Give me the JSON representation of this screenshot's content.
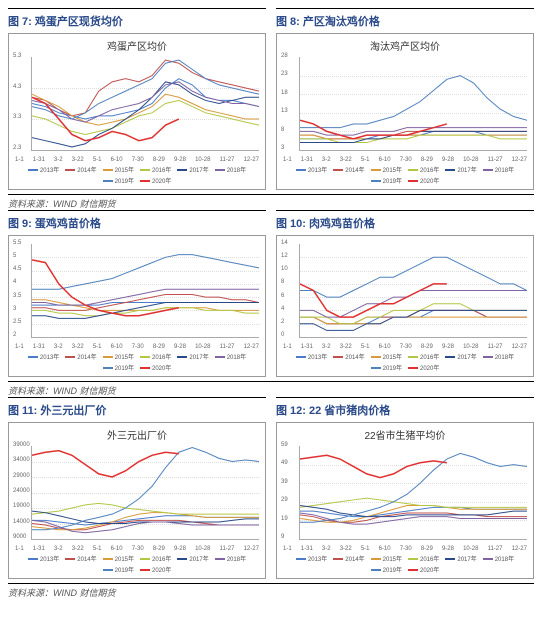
{
  "source_text": "资料来源：WIND 财信期货",
  "x_ticks": [
    "1-1",
    "1-31",
    "3-2",
    "3-22",
    "5-1",
    "6-10",
    "7-30",
    "8-29",
    "9-28",
    "10-28",
    "11-27",
    "12-27"
  ],
  "series_palette": {
    "2013年": "#4a7cc9",
    "2014年": "#c0504d",
    "2015年": "#d99a3a",
    "2016年": "#b5c644",
    "2017年": "#2a4a8a",
    "2018年": "#8064a2",
    "2019年": "#4f81bd",
    "2020年": "#e03030"
  },
  "figs": [
    {
      "label": "图 7: 鸡蛋产区现货均价",
      "inner_title": "鸡蛋产区均价",
      "ylim": [
        2.3,
        5.3
      ],
      "ytick_step": 1.0,
      "series": {
        "2013年": [
          3.8,
          3.7,
          3.5,
          3.4,
          3.3,
          3.4,
          3.4,
          3.5,
          3.6,
          3.8,
          4.3,
          4.6,
          4.4,
          4.0,
          3.9,
          3.9,
          3.8,
          3.7
        ],
        "2014年": [
          4.0,
          3.9,
          3.6,
          3.4,
          3.5,
          4.2,
          4.5,
          4.6,
          4.5,
          4.7,
          5.2,
          5.1,
          4.8,
          4.6,
          4.5,
          4.4,
          4.3,
          4.2
        ],
        "2015年": [
          4.1,
          3.9,
          3.7,
          3.4,
          3.2,
          3.1,
          3.2,
          3.3,
          3.5,
          3.7,
          4.1,
          4.0,
          3.8,
          3.6,
          3.5,
          3.4,
          3.3,
          3.3
        ],
        "2016年": [
          3.4,
          3.3,
          3.1,
          2.9,
          2.8,
          2.9,
          3.0,
          3.2,
          3.4,
          3.5,
          3.8,
          3.9,
          3.7,
          3.5,
          3.4,
          3.3,
          3.2,
          3.1
        ],
        "2017年": [
          2.7,
          2.6,
          2.5,
          2.4,
          2.5,
          2.8,
          3.0,
          3.3,
          3.6,
          4.0,
          4.5,
          4.4,
          4.1,
          3.9,
          3.8,
          3.9,
          4.0,
          4.0
        ],
        "2018年": [
          3.9,
          3.8,
          3.6,
          3.3,
          3.2,
          3.4,
          3.6,
          3.7,
          3.8,
          4.0,
          4.4,
          4.5,
          4.2,
          4.0,
          3.9,
          3.8,
          3.8,
          3.7
        ],
        "2019年": [
          3.7,
          3.6,
          3.4,
          3.3,
          3.5,
          3.8,
          4.0,
          4.2,
          4.4,
          4.6,
          5.1,
          5.2,
          4.9,
          4.6,
          4.4,
          4.3,
          4.2,
          4.1
        ],
        "2020年": [
          4.0,
          3.8,
          3.3,
          2.8,
          2.6,
          2.7,
          2.9,
          2.8,
          2.6,
          2.7,
          3.1,
          3.3
        ]
      }
    },
    {
      "label": "图 8: 产区淘汰鸡价格",
      "inner_title": "淘汰鸡产区均价",
      "ylim": [
        3,
        28
      ],
      "ytick_step": 5,
      "series": {
        "2013年": [
          6,
          6,
          6,
          6,
          6,
          6,
          7,
          7,
          7,
          7,
          8,
          8,
          8,
          8,
          7,
          7,
          7,
          7
        ],
        "2014年": [
          7,
          7,
          6,
          6,
          6,
          7,
          7,
          7,
          8,
          8,
          8,
          8,
          8,
          8,
          8,
          8,
          8,
          8
        ],
        "2015年": [
          7,
          7,
          6,
          6,
          6,
          6,
          6,
          7,
          7,
          7,
          7,
          7,
          7,
          7,
          7,
          7,
          7,
          7
        ],
        "2016年": [
          6,
          6,
          6,
          5,
          5,
          5,
          6,
          6,
          6,
          7,
          7,
          7,
          7,
          7,
          7,
          6,
          6,
          6
        ],
        "2017年": [
          5,
          5,
          5,
          5,
          5,
          6,
          6,
          7,
          7,
          8,
          8,
          8,
          8,
          8,
          8,
          8,
          8,
          8
        ],
        "2018年": [
          8,
          8,
          7,
          7,
          7,
          8,
          8,
          8,
          9,
          9,
          9,
          9,
          9,
          9,
          9,
          9,
          9,
          9
        ],
        "2019年": [
          9,
          9,
          9,
          9,
          10,
          10,
          11,
          12,
          14,
          16,
          19,
          22,
          23,
          21,
          17,
          14,
          12,
          11
        ],
        "2020年": [
          11,
          10,
          8,
          7,
          6,
          7,
          7,
          7,
          7,
          8,
          9,
          10
        ]
      }
    },
    {
      "label": "图 9: 蛋鸡鸡苗价格",
      "inner_title": "",
      "ylim": [
        2.0,
        5.5
      ],
      "ytick_step": 0.5,
      "series": {
        "2013年": [
          3.2,
          3.2,
          3.2,
          3.2,
          3.2,
          3.2,
          3.3,
          3.3,
          3.3,
          3.3,
          3.3,
          3.3,
          3.3,
          3.3,
          3.3,
          3.3,
          3.3,
          3.3
        ],
        "2014年": [
          3.1,
          3.1,
          3.0,
          3.0,
          3.0,
          3.1,
          3.2,
          3.3,
          3.4,
          3.5,
          3.6,
          3.6,
          3.6,
          3.5,
          3.5,
          3.4,
          3.4,
          3.3
        ],
        "2015年": [
          3.4,
          3.4,
          3.3,
          3.2,
          3.1,
          3.0,
          3.0,
          3.0,
          3.0,
          3.0,
          3.1,
          3.1,
          3.1,
          3.1,
          3.0,
          3.0,
          3.0,
          3.0
        ],
        "2016年": [
          3.0,
          3.0,
          2.9,
          2.9,
          2.8,
          2.8,
          2.9,
          2.9,
          3.0,
          3.0,
          3.1,
          3.1,
          3.1,
          3.0,
          3.0,
          3.0,
          2.9,
          2.9
        ],
        "2017年": [
          2.8,
          2.8,
          2.7,
          2.7,
          2.7,
          2.8,
          2.9,
          3.0,
          3.1,
          3.2,
          3.3,
          3.3,
          3.3,
          3.3,
          3.3,
          3.3,
          3.3,
          3.3
        ],
        "2018年": [
          3.3,
          3.3,
          3.2,
          3.2,
          3.2,
          3.3,
          3.4,
          3.5,
          3.6,
          3.7,
          3.8,
          3.8,
          3.8,
          3.8,
          3.8,
          3.8,
          3.8,
          3.8
        ],
        "2019年": [
          3.8,
          3.8,
          3.8,
          3.9,
          4.0,
          4.1,
          4.2,
          4.4,
          4.6,
          4.8,
          5.0,
          5.1,
          5.1,
          5.0,
          4.9,
          4.8,
          4.7,
          4.6
        ],
        "2020年": [
          4.9,
          4.8,
          4.0,
          3.5,
          3.2,
          3.0,
          2.9,
          2.8,
          2.8,
          2.9,
          3.0,
          3.1
        ]
      }
    },
    {
      "label": "图 10: 肉鸡鸡苗价格",
      "inner_title": "",
      "ylim": [
        0,
        14
      ],
      "ytick_step": 2,
      "series": {
        "2013年": [
          3,
          3,
          2,
          2,
          2,
          2,
          3,
          3,
          3,
          3,
          4,
          4,
          4,
          4,
          3,
          3,
          3,
          3
        ],
        "2014年": [
          3,
          3,
          2,
          2,
          2,
          3,
          3,
          3,
          3,
          4,
          4,
          4,
          4,
          4,
          3,
          3,
          3,
          3
        ],
        "2015年": [
          3,
          3,
          2,
          2,
          2,
          2,
          2,
          3,
          3,
          3,
          3,
          3,
          3,
          3,
          3,
          3,
          3,
          3
        ],
        "2016年": [
          3,
          3,
          3,
          2,
          2,
          3,
          3,
          4,
          4,
          4,
          5,
          5,
          5,
          4,
          4,
          4,
          4,
          4
        ],
        "2017年": [
          2,
          2,
          1,
          1,
          1,
          2,
          2,
          3,
          3,
          4,
          4,
          4,
          4,
          4,
          4,
          4,
          4,
          4
        ],
        "2018年": [
          4,
          4,
          3,
          3,
          4,
          5,
          5,
          6,
          6,
          7,
          7,
          7,
          7,
          7,
          7,
          7,
          7,
          7
        ],
        "2019年": [
          7,
          7,
          6,
          6,
          7,
          8,
          9,
          9,
          10,
          11,
          12,
          12,
          11,
          10,
          9,
          8,
          8,
          7
        ],
        "2020年": [
          8,
          7,
          4,
          3,
          3,
          4,
          5,
          5,
          6,
          7,
          8,
          8
        ]
      }
    },
    {
      "label": "图 11: 外三元出厂价",
      "inner_title": "外三元出厂价",
      "ylim": [
        9000,
        39000
      ],
      "ytick_step": 5000,
      "series": {
        "2013年": [
          15000,
          15000,
          14500,
          14000,
          13500,
          14000,
          14500,
          15000,
          15500,
          16000,
          16500,
          16500,
          16500,
          16000,
          16000,
          16000,
          16000,
          16000
        ],
        "2014年": [
          14000,
          13500,
          12500,
          12000,
          12000,
          13000,
          14000,
          14500,
          15000,
          15000,
          15000,
          15000,
          14500,
          14000,
          13500,
          13500,
          13500,
          13500
        ],
        "2015年": [
          13000,
          12500,
          12000,
          12000,
          12500,
          13500,
          14500,
          16000,
          17000,
          17500,
          17500,
          17000,
          16500,
          16000,
          16000,
          16000,
          16000,
          16000
        ],
        "2016年": [
          17000,
          17500,
          18000,
          19000,
          20000,
          20500,
          20000,
          19000,
          18500,
          18000,
          17500,
          17000,
          17000,
          17000,
          17000,
          17000,
          17000,
          17000
        ],
        "2017年": [
          18000,
          17500,
          16500,
          15500,
          14500,
          14000,
          14000,
          14000,
          14500,
          14500,
          14500,
          14500,
          14500,
          14500,
          14500,
          15000,
          15500,
          15500
        ],
        "2018年": [
          15000,
          14500,
          13000,
          11500,
          11000,
          11500,
          12000,
          13000,
          14000,
          14500,
          14500,
          14000,
          13500,
          13500,
          13500,
          13500,
          13500,
          13500
        ],
        "2019年": [
          12000,
          12000,
          12500,
          13500,
          15000,
          16000,
          17000,
          19000,
          22000,
          26000,
          32000,
          37000,
          38500,
          37000,
          35000,
          34000,
          34500,
          34000
        ],
        "2020年": [
          36000,
          37000,
          37500,
          36000,
          33000,
          30000,
          29000,
          31000,
          34000,
          36000,
          37000,
          36500
        ]
      }
    },
    {
      "label": "图 12: 22 省市猪肉价格",
      "inner_title": "22省市生猪平均价",
      "ylim": [
        9,
        59
      ],
      "ytick_step": 10,
      "series": {
        "2013年": [
          24,
          24,
          23,
          22,
          21,
          21,
          22,
          23,
          24,
          25,
          26,
          26,
          26,
          25,
          25,
          25,
          25,
          25
        ],
        "2014年": [
          22,
          21,
          19,
          18,
          18,
          19,
          21,
          22,
          23,
          23,
          23,
          23,
          22,
          22,
          21,
          21,
          21,
          21
        ],
        "2015年": [
          20,
          19,
          18,
          18,
          19,
          21,
          23,
          25,
          27,
          27,
          27,
          26,
          25,
          25,
          25,
          25,
          25,
          25
        ],
        "2016年": [
          26,
          27,
          28,
          29,
          30,
          31,
          30,
          29,
          28,
          27,
          27,
          26,
          26,
          26,
          26,
          26,
          26,
          26
        ],
        "2017年": [
          27,
          26,
          25,
          23,
          22,
          21,
          21,
          21,
          22,
          22,
          22,
          22,
          22,
          22,
          22,
          23,
          24,
          24
        ],
        "2018年": [
          23,
          22,
          20,
          18,
          17,
          17,
          18,
          19,
          20,
          21,
          21,
          21,
          20,
          20,
          20,
          20,
          20,
          20
        ],
        "2019年": [
          18,
          18,
          19,
          20,
          22,
          24,
          26,
          29,
          33,
          39,
          46,
          52,
          55,
          53,
          50,
          48,
          49,
          48
        ],
        "2020年": [
          52,
          53,
          54,
          52,
          48,
          44,
          42,
          44,
          48,
          50,
          51,
          50
        ]
      }
    }
  ]
}
